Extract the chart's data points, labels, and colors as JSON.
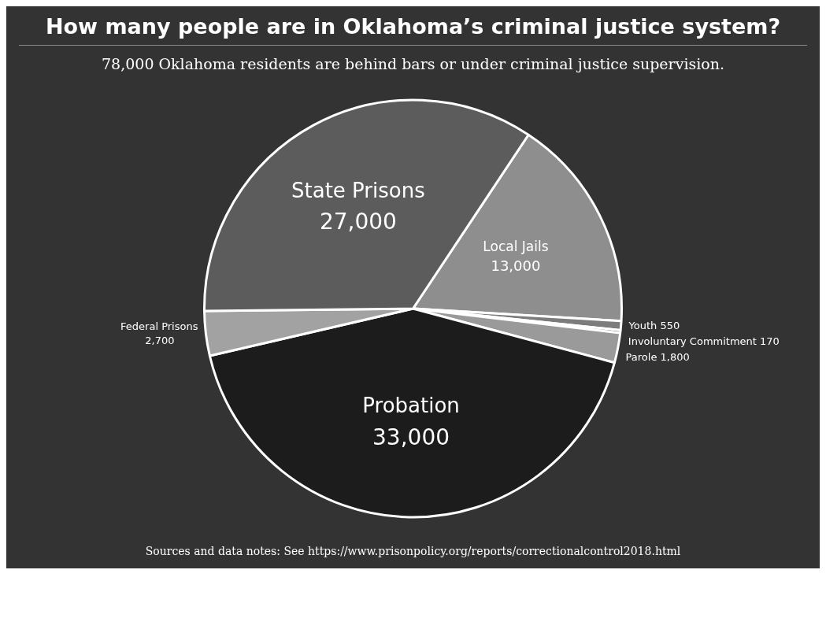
{
  "chart_data": {
    "type": "pie",
    "title": "How many people are in Oklahoma’s criminal justice system?",
    "subtitle": "78,000 Oklahoma residents are behind bars or under criminal justice supervision.",
    "categories": [
      "Local Jails",
      "Youth",
      "Involuntary Commitment",
      "Parole",
      "Probation",
      "Federal Prisons",
      "State Prisons"
    ],
    "values": [
      13000,
      550,
      170,
      1800,
      33000,
      2700,
      27000
    ],
    "colors": [
      "#8e8e8e",
      "#7c7c7c",
      "#6c6c6c",
      "#9a9a9a",
      "#1c1c1c",
      "#a2a2a2",
      "#5c5c5c"
    ],
    "value_labels": [
      "13,000",
      "550",
      "170",
      "1,800",
      "33,000",
      "2,700",
      "27,000"
    ],
    "annotations": [
      "Sources and data notes: See https://www.prisonpolicy.org/reports/correctionalcontrol2018.html"
    ]
  }
}
